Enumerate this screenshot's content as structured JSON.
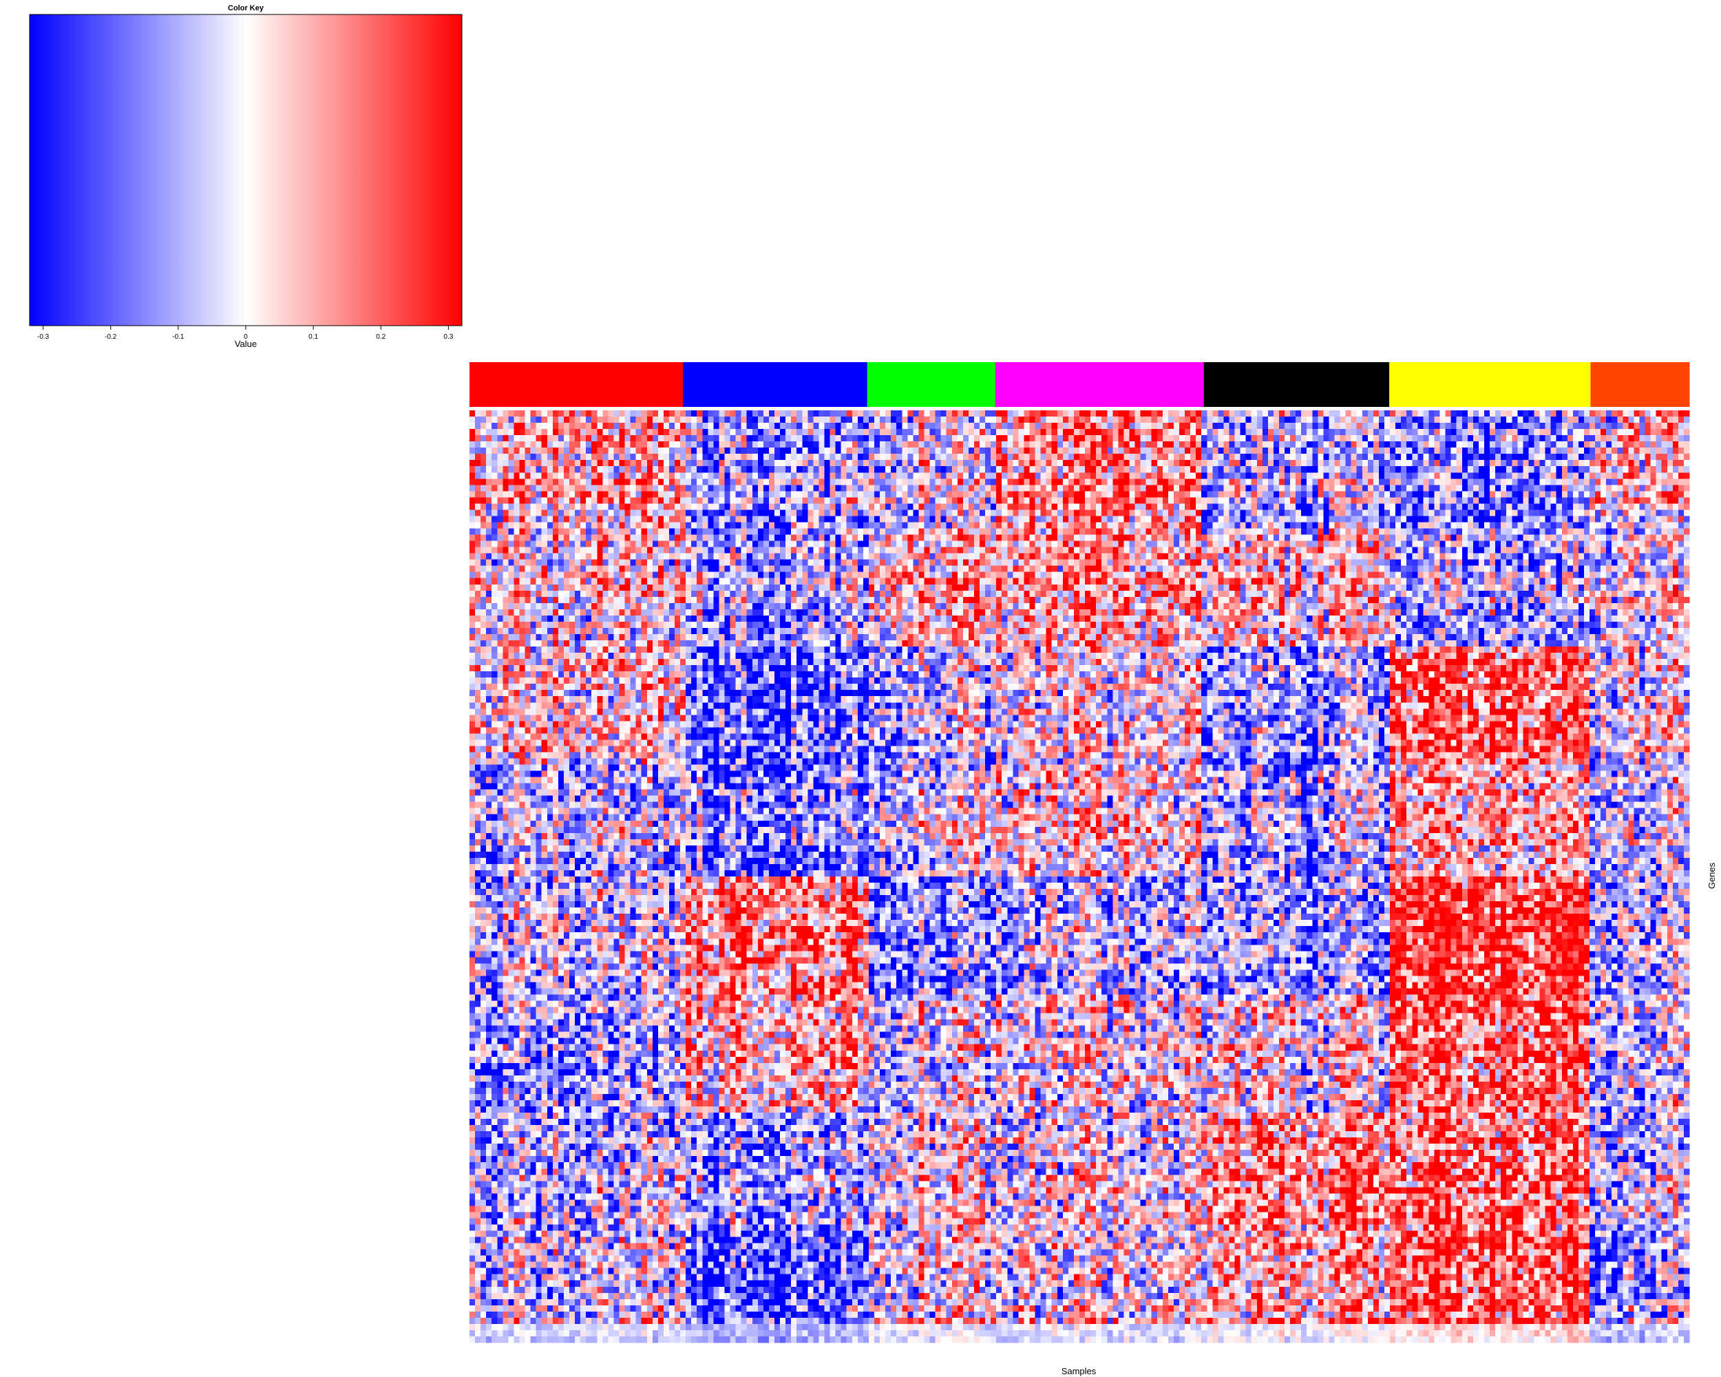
{
  "chart_data": [
    {
      "type": "colorbar",
      "title": "Color Key",
      "xlabel": "Value",
      "range": [
        -0.32,
        0.32
      ],
      "ticks": [
        -0.3,
        -0.2,
        -0.1,
        0,
        0.1,
        0.2,
        0.3
      ],
      "tick_labels": [
        "-0.3",
        "-0.2",
        "-0.1",
        "0",
        "0.1",
        "0.2",
        "0.3"
      ],
      "colors": {
        "low": "#0000ff",
        "mid": "#ffffff",
        "high": "#ff0000"
      }
    },
    {
      "type": "heatmap",
      "xlabel": "Samples",
      "ylabel": "Genes",
      "value_range": [
        -0.32,
        0.32
      ],
      "colors": {
        "low": "#0000ff",
        "mid": "#ffffff",
        "high": "#ff0000"
      },
      "n_columns": 220,
      "n_rows": 150,
      "column_groups": [
        {
          "color": "#ff0000",
          "fraction": 0.175,
          "profile": [
            0.1,
            0.05,
            0.05,
            -0.05,
            -0.05,
            -0.1,
            -0.05,
            0.0
          ]
        },
        {
          "color": "#0000ff",
          "fraction": 0.151,
          "profile": [
            -0.1,
            -0.1,
            -0.2,
            -0.15,
            0.15,
            0.1,
            -0.1,
            -0.2
          ]
        },
        {
          "color": "#00ff00",
          "fraction": 0.105,
          "profile": [
            0.0,
            0.1,
            -0.05,
            0.0,
            -0.15,
            0.0,
            0.05,
            0.05
          ]
        },
        {
          "color": "#ff00ff",
          "fraction": 0.171,
          "profile": [
            0.15,
            0.1,
            0.0,
            0.05,
            -0.1,
            0.0,
            0.0,
            0.0
          ]
        },
        {
          "color": "#000000",
          "fraction": 0.152,
          "profile": [
            -0.1,
            0.05,
            -0.15,
            -0.1,
            -0.15,
            0.0,
            0.15,
            0.1
          ]
        },
        {
          "color": "#ffff00",
          "fraction": 0.165,
          "profile": [
            -0.15,
            -0.1,
            0.2,
            0.1,
            0.25,
            0.2,
            0.2,
            0.25
          ]
        },
        {
          "color": "#ff4500",
          "fraction": 0.081,
          "profile": [
            0.05,
            0.0,
            0.0,
            -0.05,
            -0.1,
            -0.05,
            -0.05,
            -0.1
          ]
        }
      ]
    }
  ]
}
